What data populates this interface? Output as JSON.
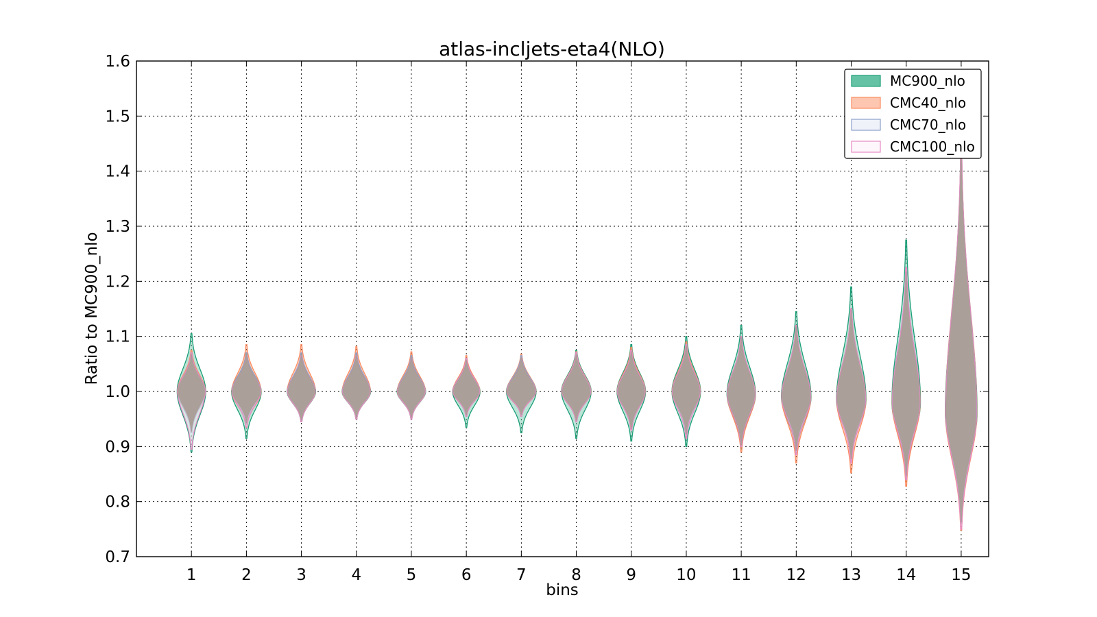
{
  "chart_data": {
    "type": "violin",
    "title": "atlas-incljets-eta4(NLO)",
    "xlabel": "bins",
    "ylabel": "Ratio to MC900_nlo",
    "ylim": [
      0.7,
      1.6
    ],
    "xlim": [
      0,
      15.5
    ],
    "categories": [
      "1",
      "2",
      "3",
      "4",
      "5",
      "6",
      "7",
      "8",
      "9",
      "10",
      "11",
      "12",
      "13",
      "14",
      "15"
    ],
    "y_ticks": [
      "0.7",
      "0.8",
      "0.9",
      "1.0",
      "1.1",
      "1.2",
      "1.3",
      "1.4",
      "1.5",
      "1.6"
    ],
    "grid": true,
    "legend_position": "top-right",
    "series": [
      {
        "name": "MC900_nlo",
        "fill": "#66c2a5",
        "edge": "#1b9e77",
        "min": [
          0.89,
          0.915,
          0.945,
          0.95,
          0.95,
          0.935,
          0.925,
          0.915,
          0.91,
          0.9,
          0.895,
          0.885,
          0.875,
          0.84,
          0.79
        ],
        "max": [
          1.105,
          1.07,
          1.065,
          1.06,
          1.055,
          1.055,
          1.065,
          1.075,
          1.085,
          1.1,
          1.12,
          1.145,
          1.19,
          1.275,
          1.41
        ],
        "mode": [
          1.0,
          1.0,
          1.0,
          1.0,
          1.0,
          1.0,
          1.0,
          1.0,
          1.0,
          1.0,
          0.995,
          0.99,
          0.985,
          0.98,
          0.96
        ]
      },
      {
        "name": "CMC40_nlo",
        "fill": "#fc8d62",
        "edge": "#fc8d62",
        "min": [
          0.925,
          0.935,
          0.945,
          0.95,
          0.95,
          0.955,
          0.955,
          0.945,
          0.93,
          0.92,
          0.89,
          0.87,
          0.852,
          0.828,
          0.748
        ],
        "max": [
          1.075,
          1.085,
          1.085,
          1.082,
          1.072,
          1.065,
          1.068,
          1.072,
          1.08,
          1.09,
          1.1,
          1.12,
          1.15,
          1.22,
          1.44
        ],
        "mode": [
          1.0,
          1.0,
          1.0,
          1.0,
          1.0,
          1.0,
          1.0,
          1.0,
          1.0,
          1.0,
          0.995,
          0.99,
          0.985,
          0.98,
          0.96
        ]
      },
      {
        "name": "CMC70_nlo",
        "fill": "#dfe5f2",
        "edge": "#8da0cb",
        "min": [
          0.925,
          0.94,
          0.945,
          0.95,
          0.95,
          0.955,
          0.955,
          0.945,
          0.93,
          0.92,
          0.9,
          0.89,
          0.875,
          0.845,
          0.76
        ],
        "max": [
          1.07,
          1.07,
          1.07,
          1.07,
          1.065,
          1.06,
          1.065,
          1.07,
          1.075,
          1.085,
          1.1,
          1.12,
          1.15,
          1.225,
          1.44
        ],
        "mode": [
          1.0,
          1.0,
          1.0,
          1.0,
          1.0,
          1.0,
          1.0,
          1.0,
          1.0,
          1.0,
          0.995,
          0.99,
          0.985,
          0.98,
          0.96
        ]
      },
      {
        "name": "CMC100_nlo",
        "fill": "#fceef8",
        "edge": "#e78ac3",
        "min": [
          0.895,
          0.935,
          0.945,
          0.95,
          0.95,
          0.955,
          0.955,
          0.945,
          0.93,
          0.915,
          0.9,
          0.885,
          0.87,
          0.84,
          0.75
        ],
        "max": [
          1.07,
          1.065,
          1.065,
          1.065,
          1.06,
          1.06,
          1.06,
          1.07,
          1.075,
          1.085,
          1.1,
          1.12,
          1.15,
          1.225,
          1.44
        ],
        "mode": [
          1.0,
          1.0,
          1.0,
          1.0,
          1.0,
          1.0,
          1.0,
          1.0,
          1.0,
          1.0,
          0.995,
          0.99,
          0.985,
          0.98,
          0.96
        ]
      }
    ],
    "overlap_color": "#a89c95"
  }
}
